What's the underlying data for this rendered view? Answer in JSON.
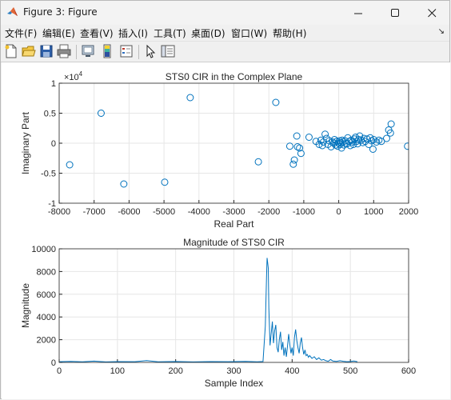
{
  "window": {
    "title": "Figure 3: Figure",
    "controls": [
      "minimize",
      "maximize",
      "close"
    ]
  },
  "menu": {
    "items": [
      "文件(F)",
      "编辑(E)",
      "查看(V)",
      "插入(I)",
      "工具(T)",
      "桌面(D)",
      "窗口(W)",
      "帮助(H)"
    ]
  },
  "toolbar": {
    "icons": [
      "new-figure-icon",
      "open-file-icon",
      "save-icon",
      "print-icon",
      "link-plot-icon",
      "insert-colorbar-icon",
      "insert-legend-icon",
      "edit-plot-icon",
      "property-inspector-icon"
    ]
  },
  "colors": {
    "series": "#0072bd",
    "grid": "#e6e6e6",
    "axis": "#262626"
  },
  "chart_data": [
    {
      "type": "scatter",
      "title": "STS0 CIR in the Complex Plane",
      "xlabel": "Real Part",
      "ylabel": "Imaginary Part",
      "y_exponent": "×10^4",
      "xlim": [
        -8000,
        2000
      ],
      "ylim": [
        -1,
        1
      ],
      "xticks": [
        "-8000",
        "-7000",
        "-6000",
        "-5000",
        "-4000",
        "-3000",
        "-2000",
        "-1000",
        "0",
        "1000",
        "2000"
      ],
      "yticks": [
        "-1",
        "-0.5",
        "0",
        "0.5",
        "1"
      ],
      "grid": true,
      "marker": "open circle",
      "series": [
        {
          "points": [
            [
              -7700,
              -0.36
            ],
            [
              -6800,
              0.5
            ],
            [
              -6150,
              -0.68
            ],
            [
              -4980,
              -0.65
            ],
            [
              -4250,
              0.76
            ],
            [
              -2300,
              -0.31
            ],
            [
              -1800,
              0.68
            ],
            [
              -1400,
              -0.05
            ],
            [
              -1300,
              -0.35
            ],
            [
              -1270,
              -0.28
            ],
            [
              -1200,
              0.12
            ],
            [
              -1180,
              -0.06
            ],
            [
              -1120,
              -0.08
            ],
            [
              -1080,
              -0.17
            ],
            [
              -850,
              0.1
            ],
            [
              -650,
              0.03
            ],
            [
              -560,
              -0.02
            ],
            [
              -510,
              0.05
            ],
            [
              -470,
              -0.04
            ],
            [
              -440,
              0.02
            ],
            [
              -390,
              0.15
            ],
            [
              -350,
              0.08
            ],
            [
              -310,
              -0.02
            ],
            [
              -270,
              0.04
            ],
            [
              -220,
              -0.06
            ],
            [
              -180,
              0.02
            ],
            [
              -140,
              0.0
            ],
            [
              -120,
              0.06
            ],
            [
              -90,
              -0.03
            ],
            [
              -60,
              0.03
            ],
            [
              -30,
              -0.05
            ],
            [
              0,
              0.0
            ],
            [
              20,
              0.04
            ],
            [
              40,
              -0.02
            ],
            [
              60,
              0.01
            ],
            [
              80,
              -0.08
            ],
            [
              100,
              0.05
            ],
            [
              120,
              0.02
            ],
            [
              150,
              -0.03
            ],
            [
              180,
              0.04
            ],
            [
              210,
              0.0
            ],
            [
              240,
              -0.01
            ],
            [
              260,
              0.09
            ],
            [
              300,
              0.03
            ],
            [
              330,
              -0.04
            ],
            [
              360,
              0.05
            ],
            [
              390,
              0.02
            ],
            [
              420,
              -0.02
            ],
            [
              450,
              0.07
            ],
            [
              480,
              0.1
            ],
            [
              510,
              0.03
            ],
            [
              540,
              -0.01
            ],
            [
              570,
              0.06
            ],
            [
              600,
              0.12
            ],
            [
              640,
              0.05
            ],
            [
              690,
              0.01
            ],
            [
              720,
              0.08
            ],
            [
              760,
              0.03
            ],
            [
              810,
              0.07
            ],
            [
              860,
              -0.02
            ],
            [
              900,
              0.09
            ],
            [
              940,
              0.04
            ],
            [
              980,
              -0.1
            ],
            [
              1000,
              0.06
            ],
            [
              1080,
              0.02
            ],
            [
              1150,
              0.05
            ],
            [
              1220,
              0.03
            ],
            [
              1370,
              0.08
            ],
            [
              1430,
              0.22
            ],
            [
              1480,
              0.17
            ],
            [
              1500,
              0.32
            ],
            [
              1970,
              -0.05
            ]
          ]
        }
      ]
    },
    {
      "type": "line",
      "title": "Magnitude of STS0 CIR",
      "xlabel": "Sample Index",
      "ylabel": "Magnitude",
      "xlim": [
        0,
        600
      ],
      "ylim": [
        0,
        10000
      ],
      "xticks": [
        "0",
        "100",
        "200",
        "300",
        "400",
        "500",
        "600"
      ],
      "yticks": [
        "0",
        "2000",
        "4000",
        "6000",
        "8000",
        "10000"
      ],
      "grid": true,
      "series": [
        {
          "points": [
            [
              1,
              60
            ],
            [
              20,
              90
            ],
            [
              40,
              50
            ],
            [
              60,
              110
            ],
            [
              80,
              40
            ],
            [
              100,
              70
            ],
            [
              130,
              60
            ],
            [
              150,
              160
            ],
            [
              170,
              50
            ],
            [
              200,
              80
            ],
            [
              230,
              40
            ],
            [
              260,
              70
            ],
            [
              290,
              60
            ],
            [
              320,
              90
            ],
            [
              340,
              50
            ],
            [
              350,
              80
            ],
            [
              354,
              3200
            ],
            [
              356,
              7500
            ],
            [
              357,
              9200
            ],
            [
              358,
              8800
            ],
            [
              359,
              8300
            ],
            [
              360,
              4800
            ],
            [
              362,
              1500
            ],
            [
              364,
              2500
            ],
            [
              366,
              3600
            ],
            [
              368,
              1700
            ],
            [
              370,
              2800
            ],
            [
              372,
              3300
            ],
            [
              374,
              1300
            ],
            [
              376,
              900
            ],
            [
              378,
              2000
            ],
            [
              380,
              2700
            ],
            [
              382,
              1100
            ],
            [
              384,
              1800
            ],
            [
              386,
              600
            ],
            [
              388,
              1300
            ],
            [
              390,
              500
            ],
            [
              392,
              1400
            ],
            [
              394,
              2500
            ],
            [
              396,
              1600
            ],
            [
              398,
              800
            ],
            [
              400,
              1300
            ],
            [
              402,
              600
            ],
            [
              404,
              2200
            ],
            [
              406,
              2900
            ],
            [
              408,
              1900
            ],
            [
              410,
              1300
            ],
            [
              412,
              800
            ],
            [
              414,
              1700
            ],
            [
              416,
              2200
            ],
            [
              418,
              1300
            ],
            [
              420,
              700
            ],
            [
              422,
              1100
            ],
            [
              424,
              600
            ],
            [
              426,
              700
            ],
            [
              428,
              450
            ],
            [
              430,
              600
            ],
            [
              434,
              350
            ],
            [
              438,
              500
            ],
            [
              442,
              250
            ],
            [
              446,
              400
            ],
            [
              450,
              200
            ],
            [
              454,
              250
            ],
            [
              458,
              150
            ],
            [
              462,
              100
            ],
            [
              466,
              250
            ],
            [
              470,
              120
            ],
            [
              476,
              90
            ],
            [
              482,
              150
            ],
            [
              488,
              100
            ],
            [
              494,
              60
            ],
            [
              500,
              80
            ],
            [
              506,
              120
            ],
            [
              512,
              60
            ]
          ]
        }
      ]
    }
  ]
}
